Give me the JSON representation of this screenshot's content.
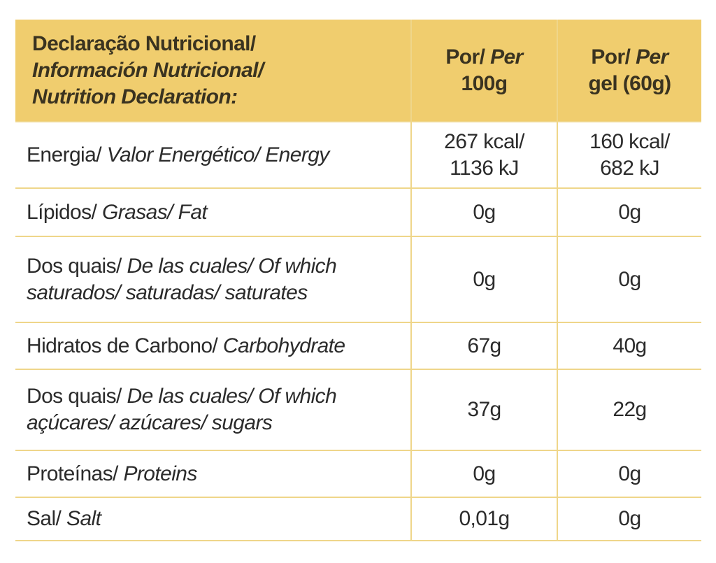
{
  "table": {
    "header": [
      {
        "lines": [
          {
            "plain": "Declaração Nutricional/"
          },
          {
            "italic": "Información Nutricional/"
          },
          {
            "italic": "Nutrition Declaration:"
          }
        ]
      },
      {
        "lines": [
          {
            "plain": "Por/",
            "italic": "Per"
          },
          {
            "plain": "100g"
          }
        ]
      },
      {
        "lines": [
          {
            "plain": "Por/",
            "italic": "Per"
          },
          {
            "plain": "gel (60g)"
          }
        ]
      }
    ],
    "rows": [
      {
        "label": {
          "plain": "Energia/",
          "italic": "Valor Energético/ Energy"
        },
        "values": [
          "267 kcal/ 1136 kJ",
          "160 kcal/ 682 kJ"
        ]
      },
      {
        "label": {
          "plain": "Lípidos/",
          "italic": "Grasas/ Fat"
        },
        "values": [
          "0g",
          "0g"
        ]
      },
      {
        "label": {
          "plain": "Dos quais/",
          "italic": "De las cuales/ Of which saturados/ saturadas/ saturates"
        },
        "values": [
          "0g",
          "0g"
        ]
      },
      {
        "label": {
          "plain": "Hidratos de Carbono/",
          "italic": "Carbohydrate"
        },
        "values": [
          "67g",
          "40g"
        ]
      },
      {
        "label": {
          "plain": "Dos quais/",
          "italic": "De las cuales/ Of which açúcares/ azúcares/ sugars"
        },
        "values": [
          "37g",
          "22g"
        ]
      },
      {
        "label": {
          "plain": "Proteínas/",
          "italic": "Proteins"
        },
        "values": [
          "0g",
          "0g"
        ]
      },
      {
        "label": {
          "plain": "Sal/",
          "italic": "Salt"
        },
        "values": [
          "0,01g",
          "0g"
        ]
      }
    ]
  }
}
